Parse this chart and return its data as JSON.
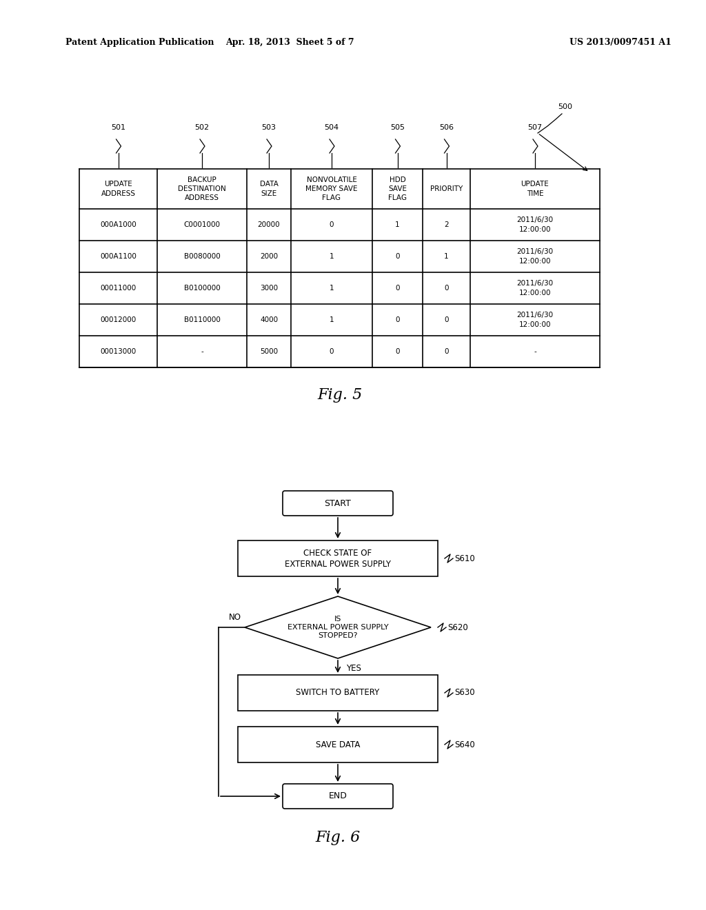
{
  "header_left": "Patent Application Publication",
  "header_mid": "Apr. 18, 2013  Sheet 5 of 7",
  "header_right": "US 2013/0097451 A1",
  "fig5_label": "Fig. 5",
  "fig6_label": "Fig. 6",
  "table_ref_label": "500",
  "col_nums": [
    "501",
    "502",
    "503",
    "504",
    "505",
    "506",
    "507"
  ],
  "col_headers": [
    "UPDATE\nADDRESS",
    "BACKUP\nDESTINATION\nADDRESS",
    "DATA\nSIZE",
    "NONVOLATILE\nMEMORY SAVE\nFLAG",
    "HDD\nSAVE\nFLAG",
    "PRIORITY",
    "UPDATE\nTIME"
  ],
  "table_data": [
    [
      "000A1000",
      "C0001000",
      "20000",
      "0",
      "1",
      "2",
      "2011/6/30\n12:00:00"
    ],
    [
      "000A1100",
      "B0080000",
      "2000",
      "1",
      "0",
      "1",
      "2011/6/30\n12:00:00"
    ],
    [
      "00011000",
      "B0100000",
      "3000",
      "1",
      "0",
      "0",
      "2011/6/30\n12:00:00"
    ],
    [
      "00012000",
      "B0110000",
      "4000",
      "1",
      "0",
      "0",
      "2011/6/30\n12:00:00"
    ],
    [
      "00013000",
      "-",
      "5000",
      "0",
      "0",
      "0",
      "-"
    ]
  ],
  "background_color": "#ffffff"
}
